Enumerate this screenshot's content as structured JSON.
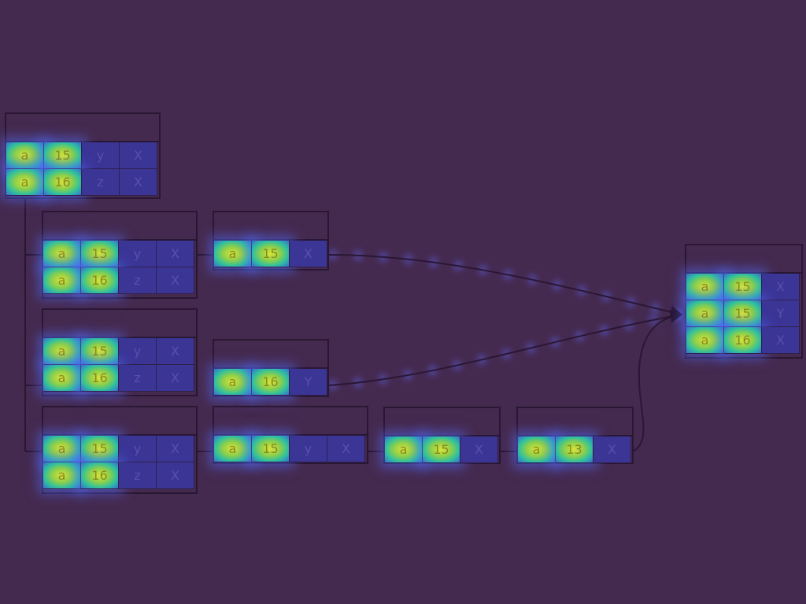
{
  "colors": {
    "background": "#452a4f",
    "border": "#2a1734",
    "hot_cell": "#d8e438",
    "cool_cell": "#3b3596",
    "edge": "#2a1734",
    "edge_glow": "#5b5ee0"
  },
  "nodes": [
    {
      "id": "n1",
      "title": "",
      "rows": [
        [
          "a",
          "15",
          "y",
          "X"
        ],
        [
          "a",
          "16",
          "z",
          "X"
        ]
      ]
    },
    {
      "id": "n2",
      "title": "",
      "rows": [
        [
          "a",
          "15",
          "y",
          "X"
        ],
        [
          "a",
          "16",
          "z",
          "X"
        ]
      ]
    },
    {
      "id": "n3",
      "title": "",
      "rows": [
        [
          "a",
          "15",
          "y",
          "X"
        ],
        [
          "a",
          "16",
          "z",
          "X"
        ]
      ]
    },
    {
      "id": "n4",
      "title": "",
      "rows": [
        [
          "a",
          "15",
          "y",
          "X"
        ],
        [
          "a",
          "16",
          "z",
          "X"
        ]
      ]
    },
    {
      "id": "n5",
      "title": "",
      "rows": [
        [
          "a",
          "15",
          "X"
        ]
      ]
    },
    {
      "id": "n6",
      "title": "",
      "rows": [
        [
          "a",
          "16",
          "Y"
        ]
      ]
    },
    {
      "id": "n7",
      "title": "",
      "rows": [
        [
          "a",
          "15",
          "y",
          "X"
        ]
      ]
    },
    {
      "id": "n8",
      "title": "",
      "rows": [
        [
          "a",
          "15",
          "X"
        ]
      ]
    },
    {
      "id": "n9",
      "title": "",
      "rows": [
        [
          "a",
          "13",
          "X"
        ]
      ]
    },
    {
      "id": "n10",
      "title": "",
      "rows": [
        [
          "a",
          "15",
          "X"
        ],
        [
          "a",
          "15",
          "Y"
        ],
        [
          "a",
          "16",
          "X"
        ]
      ]
    }
  ],
  "edges": [
    {
      "from": "n5",
      "to": "n10"
    },
    {
      "from": "n6",
      "to": "n10"
    },
    {
      "from": "n9",
      "to": "n10"
    }
  ]
}
